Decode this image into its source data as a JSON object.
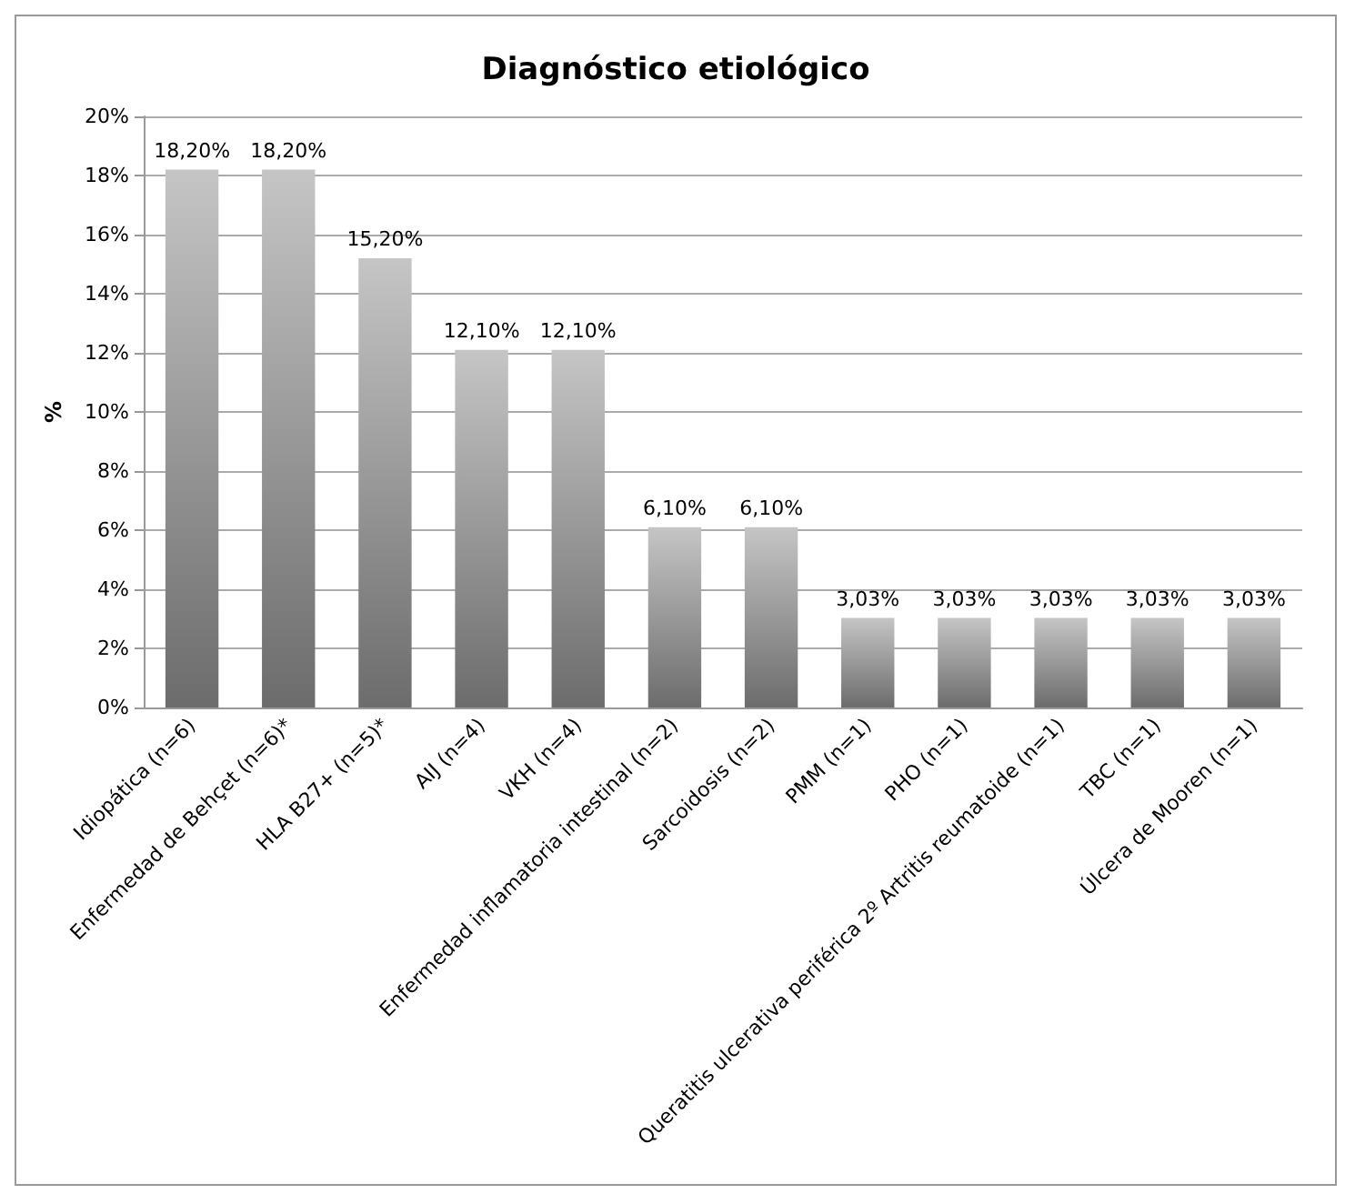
{
  "chart_data": {
    "type": "bar",
    "title": "Diagnóstico etiológico",
    "ylabel": "%",
    "categories": [
      "Idiopática (n=6)",
      "Enfermedad de Behçet (n=6)*",
      "HLA B27+ (n=5)*",
      "AIJ (n=4)",
      "VKH (n=4)",
      "Enfermedad inflamatoria intestinal (n=2)",
      "Sarcoidosis (n=2)",
      "PMM (n=1)",
      "PHO (n=1)",
      "Queratitis ulcerativa periférica 2º Artritis reumatoide (n=1)",
      "TBC (n=1)",
      "Úlcera de Mooren (n=1)"
    ],
    "values": [
      18.2,
      18.2,
      15.2,
      12.1,
      12.1,
      6.1,
      6.1,
      3.03,
      3.03,
      3.03,
      3.03,
      3.03
    ],
    "value_labels": [
      "18,20%",
      "18,20%",
      "15,20%",
      "12,10%",
      "12,10%",
      "6,10%",
      "6,10%",
      "3,03%",
      "3,03%",
      "3,03%",
      "3,03%",
      "3,03%"
    ],
    "color": "#a6a6a6",
    "ylim": [
      0,
      20
    ],
    "yticks": [
      {
        "value": 0,
        "label": "0%"
      },
      {
        "value": 2,
        "label": "2%"
      },
      {
        "value": 4,
        "label": "4%"
      },
      {
        "value": 6,
        "label": "6%"
      },
      {
        "value": 8,
        "label": "8%"
      },
      {
        "value": 10,
        "label": "10%"
      },
      {
        "value": 12,
        "label": "12%"
      },
      {
        "value": 14,
        "label": "14%"
      },
      {
        "value": 16,
        "label": "16%"
      },
      {
        "value": 18,
        "label": "18%"
      },
      {
        "value": 20,
        "label": "20%"
      }
    ],
    "grid": "y"
  }
}
